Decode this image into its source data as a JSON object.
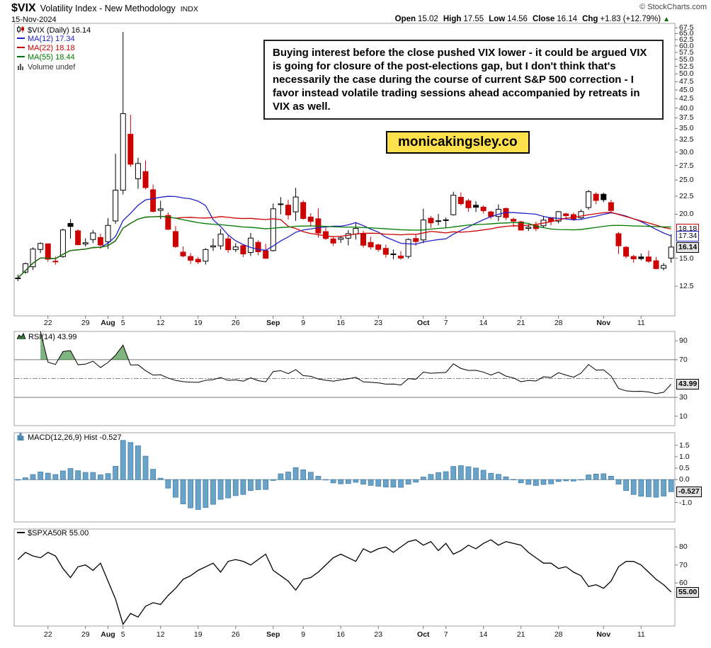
{
  "header": {
    "symbol": "$VIX",
    "title": "Volatility Index - New Methodology",
    "exchange": "INDX",
    "copyright": "© StockCharts.com",
    "date": "15-Nov-2024",
    "quote": {
      "open_label": "Open",
      "open_value": "15.02",
      "high_label": "High",
      "high_value": "17.55",
      "low_label": "Low",
      "low_value": "14.56",
      "close_label": "Close",
      "close_value": "16.14",
      "chg_label": "Chg",
      "chg_value": "+1.83 (+12.79%)",
      "arrow": "▲"
    }
  },
  "annotation": {
    "text": "Buying interest before the close pushed VIX lower - it could be argued VIX is going for closure of the post-elections gap, but I don't think that's necessarily the case during the course of current S&P 500 correction - I favor instead volatile trading sessions ahead accompanied by retreats in VIX as well."
  },
  "watermark": "monicakingsley.co",
  "legends": {
    "price": {
      "symbol": "$VIX (Daily) 16.14",
      "ma12": "MA(12) 17.34",
      "ma22": "MA(22) 18.18",
      "ma55": "MA(55) 18.44",
      "volume": "Volume undef"
    },
    "rsi": "RSI(14) 43.99",
    "macd": "MACD(12,26,9) Hist -0.527",
    "spxa50r": "$SPXA50R 55.00"
  },
  "colors": {
    "up_candle": "#000000",
    "down_candle": "#cc0000",
    "ma12": "#2222cc",
    "ma22": "#cc0000",
    "ma55": "#007a00",
    "macd_bar_fill": "#6aa2c8",
    "macd_bar_stroke": "#3d7da8",
    "rsi_fill": "rgba(0,110,0,0.5)",
    "panel_border": "#a0a0a0",
    "watermark_bg": "#ffe14d"
  },
  "chart_data": [
    {
      "type": "candlestick",
      "name": "$VIX Daily",
      "log_scale": true,
      "ylim": [
        10.3,
        69.5
      ],
      "yticks": [
        "67.5",
        "65.0",
        "62.5",
        "60.0",
        "57.5",
        "55.0",
        "52.5",
        "50.0",
        "47.5",
        "45.0",
        "42.5",
        "40.0",
        "37.5",
        "35.0",
        "32.5",
        "30.0",
        "27.5",
        "25.0",
        "22.5",
        "20.0",
        "15.0",
        "12.5"
      ],
      "last_labels": [
        {
          "text": "18.18",
          "value": 18.18,
          "color": "#cc0000",
          "current": false
        },
        {
          "text": "17.34",
          "value": 17.34,
          "color": "#2222cc",
          "current": false
        },
        {
          "text": "16.14",
          "value": 16.14,
          "color": "#000000",
          "current": true
        }
      ],
      "xticks": [
        {
          "t": "22",
          "i": 4
        },
        {
          "t": "29",
          "i": 9
        },
        {
          "t": "Aug",
          "i": 12,
          "m": true
        },
        {
          "t": "5",
          "i": 14
        },
        {
          "t": "12",
          "i": 19
        },
        {
          "t": "19",
          "i": 24
        },
        {
          "t": "26",
          "i": 29
        },
        {
          "t": "Sep",
          "i": 34,
          "m": true
        },
        {
          "t": "9",
          "i": 38
        },
        {
          "t": "16",
          "i": 43
        },
        {
          "t": "23",
          "i": 48
        },
        {
          "t": "Oct",
          "i": 54,
          "m": true
        },
        {
          "t": "7",
          "i": 57
        },
        {
          "t": "14",
          "i": 62
        },
        {
          "t": "21",
          "i": 67
        },
        {
          "t": "28",
          "i": 72
        },
        {
          "t": "Nov",
          "i": 78,
          "m": true
        },
        {
          "t": "11",
          "i": 83
        }
      ],
      "dates": [
        "7/16",
        "7/17",
        "7/18",
        "7/19",
        "7/22",
        "7/23",
        "7/24",
        "7/25",
        "7/26",
        "7/29",
        "7/30",
        "7/31",
        "8/1",
        "8/2",
        "8/5",
        "8/6",
        "8/7",
        "8/8",
        "8/9",
        "8/12",
        "8/13",
        "8/14",
        "8/15",
        "8/16",
        "8/19",
        "8/20",
        "8/21",
        "8/22",
        "8/23",
        "8/26",
        "8/27",
        "8/28",
        "8/29",
        "8/30",
        "9/3",
        "9/4",
        "9/5",
        "9/6",
        "9/9",
        "9/10",
        "9/11",
        "9/12",
        "9/13",
        "9/16",
        "9/17",
        "9/18",
        "9/19",
        "9/20",
        "9/23",
        "9/24",
        "9/25",
        "9/26",
        "9/27",
        "9/30",
        "10/1",
        "10/2",
        "10/3",
        "10/4",
        "10/7",
        "10/8",
        "10/9",
        "10/10",
        "10/11",
        "10/14",
        "10/15",
        "10/16",
        "10/17",
        "10/18",
        "10/21",
        "10/22",
        "10/23",
        "10/24",
        "10/25",
        "10/28",
        "10/29",
        "10/30",
        "10/31",
        "11/1",
        "11/4",
        "11/5",
        "11/6",
        "11/7",
        "11/8",
        "11/11",
        "11/12",
        "11/13",
        "11/14",
        "11/15"
      ],
      "ohlc": [
        [
          13.16,
          13.49,
          12.92,
          13.19
        ],
        [
          13.7,
          14.59,
          13.56,
          14.48
        ],
        [
          14.19,
          16.1,
          13.9,
          15.93
        ],
        [
          15.89,
          16.63,
          15.52,
          16.52
        ],
        [
          16.48,
          16.54,
          14.66,
          14.91
        ],
        [
          14.7,
          15.17,
          14.39,
          14.72
        ],
        [
          15.17,
          18.19,
          15.05,
          18.04
        ],
        [
          18.83,
          19.36,
          17.06,
          18.46
        ],
        [
          17.94,
          18.12,
          16.32,
          16.39
        ],
        [
          16.47,
          17.09,
          16.2,
          16.6
        ],
        [
          16.95,
          18.04,
          16.56,
          17.69
        ],
        [
          17.18,
          17.62,
          15.96,
          16.36
        ],
        [
          16.71,
          19.48,
          15.94,
          18.59
        ],
        [
          19.14,
          29.66,
          18.77,
          23.39
        ],
        [
          23.39,
          65.73,
          22.74,
          38.57
        ],
        [
          33.71,
          38.28,
          27.23,
          27.71
        ],
        [
          25.21,
          28.89,
          23.61,
          27.85
        ],
        [
          26.42,
          28.4,
          23.5,
          23.79
        ],
        [
          23.46,
          24.28,
          20.22,
          20.37
        ],
        [
          20.51,
          21.84,
          19.37,
          20.71
        ],
        [
          19.84,
          20.25,
          18.04,
          18.12
        ],
        [
          17.86,
          18.52,
          16.04,
          16.19
        ],
        [
          15.62,
          16.19,
          15.1,
          15.23
        ],
        [
          15.18,
          15.52,
          14.46,
          14.8
        ],
        [
          14.9,
          15.13,
          14.45,
          14.65
        ],
        [
          14.72,
          16.02,
          14.4,
          15.88
        ],
        [
          16.15,
          17.05,
          15.74,
          16.27
        ],
        [
          16.27,
          18.15,
          15.89,
          17.56
        ],
        [
          17.03,
          17.42,
          15.54,
          15.86
        ],
        [
          15.88,
          16.55,
          15.62,
          16.15
        ],
        [
          16.29,
          16.41,
          15.12,
          15.43
        ],
        [
          15.58,
          17.69,
          15.23,
          17.11
        ],
        [
          16.64,
          16.86,
          15.29,
          15.65
        ],
        [
          15.77,
          16.48,
          14.93,
          15.0
        ],
        [
          15.77,
          21.44,
          15.68,
          20.72
        ],
        [
          21.39,
          22.35,
          19.98,
          21.31
        ],
        [
          21.22,
          21.94,
          19.33,
          19.9
        ],
        [
          20.31,
          23.76,
          19.15,
          22.38
        ],
        [
          21.59,
          21.89,
          19.3,
          19.45
        ],
        [
          19.63,
          20.13,
          18.57,
          19.08
        ],
        [
          19.41,
          20.79,
          17.17,
          17.69
        ],
        [
          17.85,
          18.32,
          16.9,
          17.07
        ],
        [
          17.02,
          17.23,
          16.25,
          16.56
        ],
        [
          16.97,
          17.38,
          16.58,
          17.14
        ],
        [
          17.1,
          18.03,
          16.32,
          17.61
        ],
        [
          17.57,
          19.0,
          16.94,
          18.23
        ],
        [
          17.62,
          17.94,
          16.09,
          16.33
        ],
        [
          16.63,
          17.27,
          15.87,
          16.15
        ],
        [
          16.37,
          16.5,
          15.65,
          15.89
        ],
        [
          16.0,
          16.4,
          15.06,
          15.39
        ],
        [
          15.43,
          15.88,
          14.9,
          15.41
        ],
        [
          15.22,
          15.72,
          14.86,
          15.02
        ],
        [
          15.18,
          17.08,
          14.97,
          16.96
        ],
        [
          17.07,
          17.49,
          16.27,
          16.73
        ],
        [
          16.91,
          20.73,
          16.55,
          19.26
        ],
        [
          19.48,
          19.78,
          18.28,
          18.9
        ],
        [
          19.16,
          20.03,
          18.6,
          19.08
        ],
        [
          19.28,
          19.58,
          18.3,
          19.21
        ],
        [
          19.93,
          23.14,
          19.82,
          22.64
        ],
        [
          22.34,
          23.07,
          21.18,
          21.42
        ],
        [
          21.82,
          22.12,
          20.3,
          20.86
        ],
        [
          21.2,
          21.77,
          20.29,
          20.93
        ],
        [
          20.94,
          21.19,
          20.07,
          20.46
        ],
        [
          20.3,
          20.44,
          19.36,
          19.7
        ],
        [
          19.7,
          21.31,
          19.1,
          20.64
        ],
        [
          20.76,
          20.87,
          19.24,
          19.58
        ],
        [
          19.34,
          19.58,
          18.41,
          19.11
        ],
        [
          19.03,
          19.15,
          17.98,
          18.03
        ],
        [
          18.23,
          18.74,
          17.93,
          18.37
        ],
        [
          18.6,
          19.03,
          17.9,
          18.2
        ],
        [
          18.54,
          19.68,
          18.31,
          19.24
        ],
        [
          19.56,
          19.62,
          18.59,
          19.08
        ],
        [
          19.12,
          20.42,
          18.84,
          20.33
        ],
        [
          20.05,
          20.17,
          19.41,
          19.8
        ],
        [
          19.94,
          20.21,
          19.12,
          19.34
        ],
        [
          19.54,
          20.64,
          19.28,
          20.35
        ],
        [
          20.89,
          23.42,
          20.58,
          23.16
        ],
        [
          22.79,
          23.08,
          21.34,
          21.88
        ],
        [
          22.78,
          23.02,
          21.63,
          21.98
        ],
        [
          21.57,
          21.97,
          20.25,
          20.49
        ],
        [
          17.61,
          17.81,
          15.44,
          16.27
        ],
        [
          16.12,
          16.25,
          14.99,
          15.2
        ],
        [
          15.18,
          15.34,
          14.57,
          14.94
        ],
        [
          15.13,
          15.47,
          14.79,
          14.97
        ],
        [
          15.13,
          15.76,
          14.56,
          14.71
        ],
        [
          14.76,
          15.12,
          13.95,
          14.02
        ],
        [
          14.06,
          14.54,
          13.86,
          14.31
        ],
        [
          15.02,
          17.55,
          14.56,
          16.14
        ]
      ],
      "overlays": [
        {
          "name": "MA(12)",
          "type": "sma",
          "period": 12,
          "color": "#2222cc",
          "last": 17.34
        },
        {
          "name": "MA(22)",
          "type": "sma",
          "period": 22,
          "color": "#cc0000",
          "last": 18.18
        },
        {
          "name": "MA(55)",
          "type": "sma",
          "period": 55,
          "color": "#007a00",
          "last": 18.44
        }
      ]
    },
    {
      "type": "line",
      "name": "RSI(14)",
      "derived": "RSI(14) computed from close series of panel 1",
      "ylim": [
        0,
        100
      ],
      "yticks": [
        "90",
        "70",
        "30",
        "10"
      ],
      "hlines": [
        70,
        30
      ],
      "mid_dash": 50,
      "overbought": 70,
      "last": 43.99,
      "last_label": {
        "text": "43.99",
        "value": 43.99,
        "current": true
      }
    },
    {
      "type": "bar",
      "name": "MACD(12,26,9) Histogram",
      "derived": "(EMA12-EMA26) minus EMA9 signal, computed from close series of panel 1",
      "ylim": [
        -1.85,
        2.05
      ],
      "yticks": [
        "1.5",
        "1.0",
        "0.5",
        "0.0",
        "-1.0"
      ],
      "last": -0.527,
      "last_label": {
        "text": "-0.527",
        "value": -0.527,
        "current": true
      }
    },
    {
      "type": "line",
      "name": "$SPXA50R",
      "ylim": [
        36,
        90
      ],
      "yticks": [
        "80",
        "70",
        "60"
      ],
      "last": 55.0,
      "last_label": {
        "text": "55.00",
        "value": 55.0,
        "current": true
      },
      "values": [
        73,
        77,
        75,
        74,
        77,
        75,
        68,
        63,
        69,
        70,
        67,
        71,
        61,
        51,
        37,
        43,
        41,
        47,
        49,
        48,
        53,
        57,
        62,
        64,
        67,
        69,
        71,
        66,
        72,
        73,
        72,
        70,
        73,
        76,
        67,
        64,
        61,
        56,
        62,
        63,
        66,
        70,
        74,
        76,
        74,
        72,
        79,
        77,
        79,
        80,
        77,
        80,
        83,
        84,
        81,
        83,
        78,
        82,
        76,
        78,
        81,
        79,
        82,
        84,
        81,
        83,
        82,
        81,
        77,
        74,
        71,
        71,
        68,
        69,
        66,
        64,
        58,
        59,
        57,
        61,
        69,
        72,
        72,
        70,
        66,
        62,
        59,
        55
      ]
    }
  ]
}
